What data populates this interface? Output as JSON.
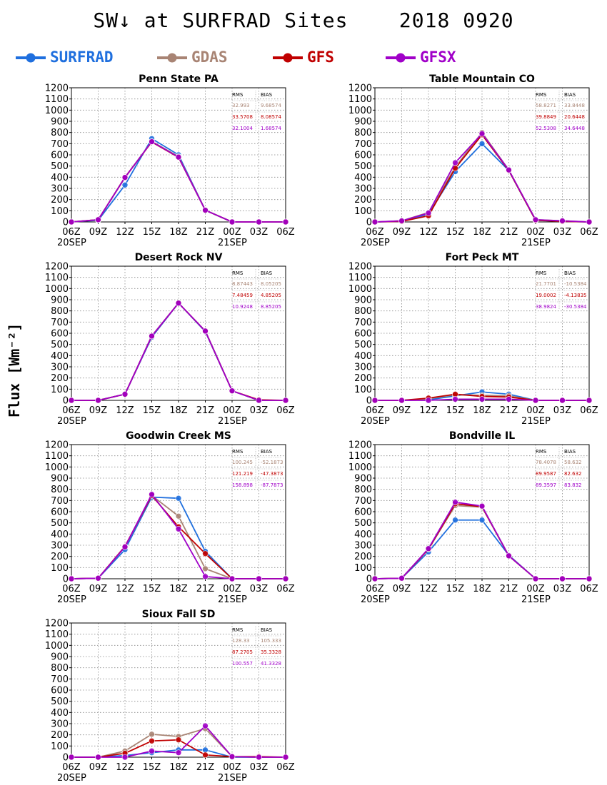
{
  "title": "SW↓ at SURFRAD Sites    2018 0920",
  "ylabel": "Flux [Wm⁻²]",
  "legend": [
    {
      "name": "SURFRAD",
      "color": "#1f6fde"
    },
    {
      "name": "GDAS",
      "color": "#a88474"
    },
    {
      "name": "GFS",
      "color": "#c00000"
    },
    {
      "name": "GFSX",
      "color": "#a000c8"
    }
  ],
  "chart_data": [
    {
      "type": "line",
      "title": "Penn State PA",
      "x": [
        "06Z",
        "09Z",
        "12Z",
        "15Z",
        "18Z",
        "21Z",
        "00Z",
        "03Z",
        "06Z"
      ],
      "date_labels": [
        "20SEP",
        "21SEP"
      ],
      "yticks": [
        0,
        100,
        200,
        300,
        400,
        500,
        600,
        700,
        800,
        900,
        1000,
        1100,
        1200
      ],
      "ylim": [
        0,
        1200
      ],
      "grid": true,
      "stats_header": [
        "RMS",
        "BIAS"
      ],
      "stats": [
        {
          "series": "GDAS",
          "rms": "32.993",
          "bias": "9.68574"
        },
        {
          "series": "GFS",
          "rms": "33.5708",
          "bias": "8.08574"
        },
        {
          "series": "GFSX",
          "rms": "32.1004",
          "bias": "1.68574"
        }
      ],
      "series": [
        {
          "name": "SURFRAD",
          "values": [
            0,
            15,
            330,
            745,
            600,
            105,
            0,
            0,
            0
          ]
        },
        {
          "name": "GDAS",
          "values": [
            0,
            20,
            395,
            720,
            585,
            105,
            0,
            0,
            0
          ]
        },
        {
          "name": "GFS",
          "values": [
            0,
            20,
            400,
            715,
            578,
            105,
            0,
            0,
            0
          ]
        },
        {
          "name": "GFSX",
          "values": [
            0,
            20,
            398,
            718,
            580,
            105,
            0,
            0,
            0
          ]
        }
      ]
    },
    {
      "type": "line",
      "title": "Table Mountain CO",
      "x": [
        "06Z",
        "09Z",
        "12Z",
        "15Z",
        "18Z",
        "21Z",
        "00Z",
        "03Z",
        "06Z"
      ],
      "date_labels": [
        "20SEP",
        "21SEP"
      ],
      "yticks": [
        0,
        100,
        200,
        300,
        400,
        500,
        600,
        700,
        800,
        900,
        1000,
        1100,
        1200
      ],
      "ylim": [
        0,
        1200
      ],
      "grid": true,
      "stats_header": [
        "RMS",
        "BIAS"
      ],
      "stats": [
        {
          "series": "GDAS",
          "rms": "58.8271",
          "bias": "33.8448"
        },
        {
          "series": "GFS",
          "rms": "39.8849",
          "bias": "20.6448"
        },
        {
          "series": "GFSX",
          "rms": "52.5308",
          "bias": "34.6448"
        }
      ],
      "series": [
        {
          "name": "SURFRAD",
          "values": [
            0,
            5,
            70,
            450,
            700,
            460,
            15,
            5,
            0
          ]
        },
        {
          "name": "GDAS",
          "values": [
            0,
            10,
            85,
            490,
            800,
            465,
            20,
            10,
            0
          ]
        },
        {
          "name": "GFS",
          "values": [
            0,
            5,
            55,
            480,
            780,
            460,
            15,
            5,
            0
          ]
        },
        {
          "name": "GFSX",
          "values": [
            0,
            10,
            80,
            530,
            790,
            465,
            20,
            10,
            0
          ]
        }
      ]
    },
    {
      "type": "line",
      "title": "Desert Rock NV",
      "x": [
        "06Z",
        "09Z",
        "12Z",
        "15Z",
        "18Z",
        "21Z",
        "00Z",
        "03Z",
        "06Z"
      ],
      "date_labels": [
        "20SEP",
        "21SEP"
      ],
      "yticks": [
        0,
        100,
        200,
        300,
        400,
        500,
        600,
        700,
        800,
        900,
        1000,
        1100,
        1200
      ],
      "ylim": [
        0,
        1200
      ],
      "grid": true,
      "stats_header": [
        "RMS",
        "BIAS"
      ],
      "stats": [
        {
          "series": "GDAS",
          "rms": "8.87443",
          "bias": "8.05205"
        },
        {
          "series": "GFS",
          "rms": "7.48459",
          "bias": "4.85205"
        },
        {
          "series": "GFSX",
          "rms": "10.9248",
          "bias": "8.85205"
        }
      ],
      "series": [
        {
          "name": "SURFRAD",
          "values": [
            0,
            0,
            55,
            565,
            870,
            615,
            85,
            0,
            0
          ]
        },
        {
          "name": "GDAS",
          "values": [
            0,
            0,
            55,
            575,
            870,
            620,
            85,
            0,
            0
          ]
        },
        {
          "name": "GFS",
          "values": [
            0,
            0,
            55,
            575,
            870,
            620,
            85,
            5,
            0
          ]
        },
        {
          "name": "GFSX",
          "values": [
            0,
            0,
            55,
            575,
            870,
            620,
            85,
            0,
            0
          ]
        }
      ]
    },
    {
      "type": "line",
      "title": "Fort Peck MT",
      "x": [
        "06Z",
        "09Z",
        "12Z",
        "15Z",
        "18Z",
        "21Z",
        "00Z",
        "03Z",
        "06Z"
      ],
      "date_labels": [
        "20SEP",
        "21SEP"
      ],
      "yticks": [
        0,
        100,
        200,
        300,
        400,
        500,
        600,
        700,
        800,
        900,
        1000,
        1100,
        1200
      ],
      "ylim": [
        0,
        1200
      ],
      "grid": true,
      "stats_header": [
        "RMS",
        "BIAS"
      ],
      "stats": [
        {
          "series": "GDAS",
          "rms": "21.7701",
          "bias": "-10.5384"
        },
        {
          "series": "GFS",
          "rms": "19.0002",
          "bias": "-4.13835"
        },
        {
          "series": "GFSX",
          "rms": "38.9824",
          "bias": "-30.5384"
        }
      ],
      "series": [
        {
          "name": "SURFRAD",
          "values": [
            0,
            0,
            5,
            40,
            75,
            55,
            0,
            0,
            0
          ]
        },
        {
          "name": "GDAS",
          "values": [
            0,
            0,
            15,
            50,
            45,
            40,
            0,
            0,
            0
          ]
        },
        {
          "name": "GFS",
          "values": [
            0,
            0,
            20,
            55,
            35,
            30,
            0,
            0,
            0
          ]
        },
        {
          "name": "GFSX",
          "values": [
            0,
            0,
            0,
            10,
            10,
            10,
            0,
            0,
            0
          ]
        }
      ]
    },
    {
      "type": "line",
      "title": "Goodwin Creek MS",
      "x": [
        "06Z",
        "09Z",
        "12Z",
        "15Z",
        "18Z",
        "21Z",
        "00Z",
        "03Z",
        "06Z"
      ],
      "date_labels": [
        "20SEP",
        "21SEP"
      ],
      "yticks": [
        0,
        100,
        200,
        300,
        400,
        500,
        600,
        700,
        800,
        900,
        1000,
        1100,
        1200
      ],
      "ylim": [
        0,
        1200
      ],
      "grid": true,
      "stats_header": [
        "RMS",
        "BIAS"
      ],
      "stats": [
        {
          "series": "GDAS",
          "rms": "100.245",
          "bias": "-52.1873"
        },
        {
          "series": "GFS",
          "rms": "121.219",
          "bias": "-47.3873"
        },
        {
          "series": "GFSX",
          "rms": "158.898",
          "bias": "-87.7873"
        }
      ],
      "series": [
        {
          "name": "SURFRAD",
          "values": [
            0,
            5,
            260,
            730,
            720,
            245,
            0,
            0,
            0
          ]
        },
        {
          "name": "GDAS",
          "values": [
            0,
            5,
            285,
            745,
            560,
            90,
            0,
            0,
            0
          ]
        },
        {
          "name": "GFS",
          "values": [
            0,
            5,
            290,
            745,
            465,
            225,
            0,
            0,
            0
          ]
        },
        {
          "name": "GFSX",
          "values": [
            0,
            5,
            285,
            755,
            445,
            20,
            0,
            0,
            0
          ]
        }
      ]
    },
    {
      "type": "line",
      "title": "Bondville IL",
      "x": [
        "06Z",
        "09Z",
        "12Z",
        "15Z",
        "18Z",
        "21Z",
        "00Z",
        "03Z",
        "06Z"
      ],
      "date_labels": [
        "20SEP",
        "21SEP"
      ],
      "yticks": [
        0,
        100,
        200,
        300,
        400,
        500,
        600,
        700,
        800,
        900,
        1000,
        1100,
        1200
      ],
      "ylim": [
        0,
        1200
      ],
      "grid": true,
      "stats_header": [
        "RMS",
        "BIAS"
      ],
      "stats": [
        {
          "series": "GDAS",
          "rms": "78.4078",
          "bias": "58.632"
        },
        {
          "series": "GFS",
          "rms": "89.9587",
          "bias": "82.632"
        },
        {
          "series": "GFSX",
          "rms": "89.3597",
          "bias": "83.832"
        }
      ],
      "series": [
        {
          "name": "SURFRAD",
          "values": [
            0,
            5,
            240,
            525,
            525,
            210,
            0,
            0,
            0
          ]
        },
        {
          "name": "GDAS",
          "values": [
            0,
            5,
            265,
            655,
            640,
            205,
            0,
            0,
            0
          ]
        },
        {
          "name": "GFS",
          "values": [
            0,
            5,
            265,
            670,
            645,
            205,
            0,
            0,
            0
          ]
        },
        {
          "name": "GFSX",
          "values": [
            0,
            5,
            270,
            685,
            650,
            205,
            0,
            0,
            0
          ]
        }
      ]
    },
    {
      "type": "line",
      "title": "Sioux Fall SD",
      "x": [
        "06Z",
        "09Z",
        "12Z",
        "15Z",
        "18Z",
        "21Z",
        "00Z",
        "03Z",
        "06Z"
      ],
      "date_labels": [
        "20SEP",
        "21SEP"
      ],
      "yticks": [
        0,
        100,
        200,
        300,
        400,
        500,
        600,
        700,
        800,
        900,
        1000,
        1100,
        1200
      ],
      "ylim": [
        0,
        1200
      ],
      "grid": true,
      "stats_header": [
        "RMS",
        "BIAS"
      ],
      "stats": [
        {
          "series": "GDAS",
          "rms": "128.33",
          "bias": "105.333"
        },
        {
          "series": "GFS",
          "rms": "87.2705",
          "bias": "35.3328"
        },
        {
          "series": "GFSX",
          "rms": "100.557",
          "bias": "41.3328"
        }
      ],
      "series": [
        {
          "name": "SURFRAD",
          "values": [
            0,
            0,
            15,
            40,
            65,
            65,
            0,
            0,
            0
          ]
        },
        {
          "name": "GDAS",
          "values": [
            0,
            0,
            55,
            205,
            185,
            255,
            5,
            0,
            0
          ]
        },
        {
          "name": "GFS",
          "values": [
            0,
            0,
            35,
            145,
            155,
            20,
            5,
            5,
            0
          ]
        },
        {
          "name": "GFSX",
          "values": [
            0,
            0,
            0,
            55,
            40,
            280,
            5,
            0,
            0
          ]
        }
      ]
    }
  ]
}
